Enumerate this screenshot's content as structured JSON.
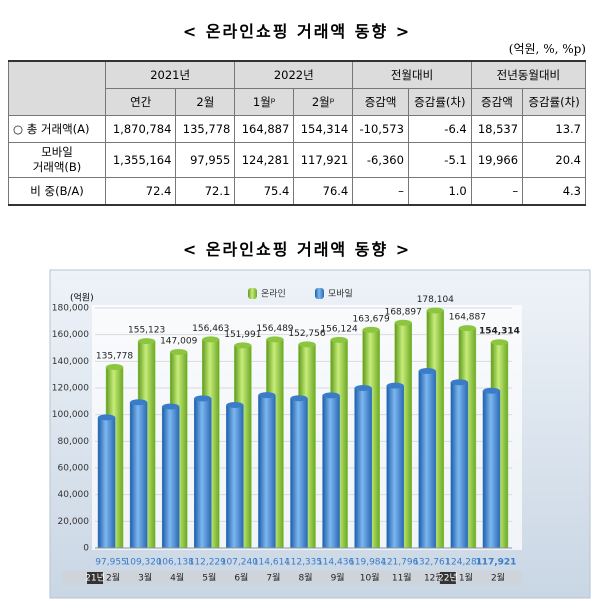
{
  "table": {
    "title": "< 온라인쇼핑 거래액 동향 >",
    "unit": "(억원, %, %p)",
    "header_groups": [
      "2021년",
      "2022년",
      "전월대비",
      "전년동월대비"
    ],
    "header": [
      "연간",
      "2월",
      "1월ᵖ",
      "2월ᵖ",
      "증감액",
      "증감률(차)",
      "증감액",
      "증감률(차)"
    ],
    "rows": [
      [
        "○ 총 거래액(A)",
        "1,870,784",
        "135,778",
        "164,887",
        "154,314",
        "-10,573",
        "-6.4",
        "18,537",
        "13.7"
      ],
      [
        "모바일\n거래액(B)",
        "1,355,164",
        "97,955",
        "124,281",
        "117,921",
        "-6,360",
        "-5.1",
        "19,966",
        "20.4"
      ],
      [
        "비 중(B/A)",
        "72.4",
        "72.1",
        "75.4",
        "76.4",
        "–",
        "1.0",
        "–",
        "4.3"
      ]
    ]
  },
  "chart_data": {
    "type": "bar",
    "title": "< 온라인쇼핑 거래액 동향 >",
    "y_label": "(억원)",
    "categories": [
      "2월",
      "3월",
      "4월",
      "5월",
      "6월",
      "7월",
      "8월",
      "9월",
      "10월",
      "11월",
      "12월",
      "1월",
      "2월"
    ],
    "category_groups": [
      "21년",
      null,
      null,
      null,
      null,
      null,
      null,
      null,
      null,
      null,
      null,
      "22년",
      null
    ],
    "series": [
      {
        "name": "온라인",
        "color": "#8cc63f",
        "values": [
          135778,
          155123,
          147009,
          156463,
          151991,
          156489,
          152756,
          156124,
          163679,
          168897,
          178104,
          164887,
          154314
        ],
        "value_labels": [
          "135,778",
          "155,123",
          "147,009",
          "156,463",
          "151,991",
          "156,489",
          "152,756",
          "156,124",
          "163,679",
          "168,897",
          "178,104",
          "164,887",
          "154,314"
        ]
      },
      {
        "name": "모바일",
        "color": "#3a7cc8",
        "values": [
          97955,
          109320,
          106138,
          112229,
          107240,
          114614,
          112335,
          114436,
          119984,
          121796,
          132761,
          124281,
          117921
        ],
        "value_labels": [
          "97,955",
          "109,320",
          "106,138",
          "112,229",
          "107,240",
          "114,614",
          "112,335",
          "114,436",
          "119,984",
          "121,796",
          "132,761",
          "124,281",
          "117,921"
        ]
      }
    ],
    "ylim": [
      0,
      180000
    ],
    "yticks": [
      0,
      {
        "value": 20000,
        "label": "20,000"
      },
      {
        "value": 40000,
        "label": "40,000"
      },
      {
        "value": 60000,
        "label": "60,000"
      },
      {
        "value": 80000,
        "label": "80,000"
      },
      {
        "value": 100000,
        "label": "100,000"
      },
      {
        "value": 120000,
        "label": "120,000"
      },
      {
        "value": 140000,
        "label": "140,000"
      },
      {
        "value": 160000,
        "label": "160,000"
      },
      {
        "value": 180000,
        "label": "180,000"
      }
    ],
    "grid": true
  }
}
